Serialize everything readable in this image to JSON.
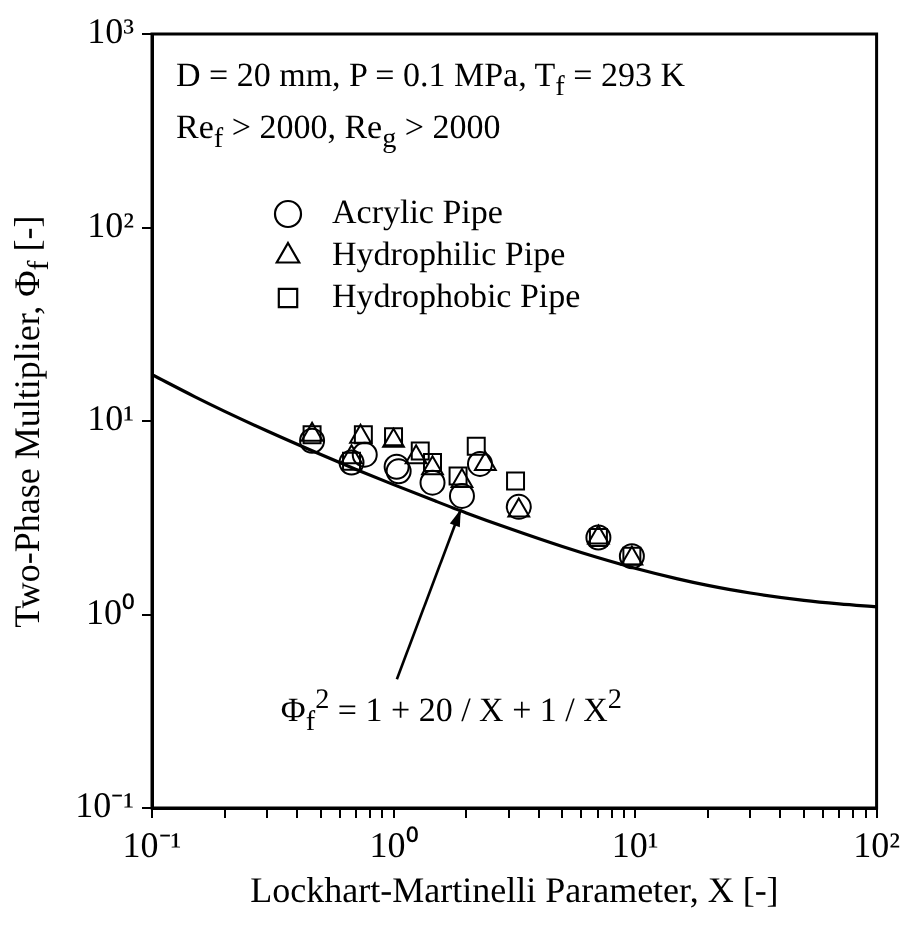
{
  "chart_data": {
    "type": "scatter",
    "xlabel": "Lockhart-Martinelli Parameter,  X  [-]",
    "ylabel": "Two-Phase Multiplier,  Φ$_{f}$  [-]",
    "annotations": [
      "D = 20 mm, P = 0.1 MPa, T$_{f}$ = 293 K",
      "Re$_{f}$ > 2000,  Re$_{g}$ > 2000",
      {
        "text": "Φ$_{f}$$^{2}$ = 1 + 20 / X + 1 / X$^{2}$",
        "x": 1.9,
        "y": 3.5
      }
    ],
    "log": "xy",
    "xlim": [
      0.1,
      100
    ],
    "ylim": [
      0.1,
      1000
    ],
    "xticks": [
      {
        "value": 0.1,
        "label": "10⁻¹"
      },
      {
        "value": 0.2,
        "label": null
      },
      {
        "value": 0.3,
        "label": null
      },
      {
        "value": 0.4,
        "label": null
      },
      {
        "value": 0.5,
        "label": null
      },
      {
        "value": 0.6,
        "label": null
      },
      {
        "value": 0.7,
        "label": null
      },
      {
        "value": 0.8,
        "label": null
      },
      {
        "value": 0.9,
        "label": null
      },
      {
        "value": 1,
        "label": "10⁰"
      },
      {
        "value": 2,
        "label": null
      },
      {
        "value": 3,
        "label": null
      },
      {
        "value": 4,
        "label": null
      },
      {
        "value": 5,
        "label": null
      },
      {
        "value": 6,
        "label": null
      },
      {
        "value": 7,
        "label": null
      },
      {
        "value": 8,
        "label": null
      },
      {
        "value": 9,
        "label": null
      },
      {
        "value": 10,
        "label": "10¹"
      },
      {
        "value": 20,
        "label": null
      },
      {
        "value": 30,
        "label": null
      },
      {
        "value": 40,
        "label": null
      },
      {
        "value": 50,
        "label": null
      },
      {
        "value": 60,
        "label": null
      },
      {
        "value": 70,
        "label": null
      },
      {
        "value": 80,
        "label": null
      },
      {
        "value": 90,
        "label": null
      },
      {
        "value": 100,
        "label": "10²"
      }
    ],
    "yticks": [
      {
        "value": 0.1,
        "label": "10⁻¹"
      },
      {
        "value": 1,
        "label": "10⁰"
      },
      {
        "value": 10,
        "label": "10¹"
      },
      {
        "value": 100,
        "label": "10²"
      },
      {
        "value": 1000,
        "label": "10³"
      }
    ],
    "grid": false,
    "legend": "top left",
    "series": [
      {
        "name": "Acrylic Pipe",
        "marker": "circle",
        "color": "#000000",
        "x": [
          0.46,
          0.67,
          0.76,
          1.03,
          1.05,
          1.45,
          1.92,
          2.28,
          3.3,
          7.05,
          9.7
        ],
        "values": [
          7.9,
          6.1,
          6.7,
          5.8,
          5.5,
          4.8,
          4.1,
          6.0,
          3.6,
          2.5,
          2.0
        ]
      },
      {
        "name": "Hydrophilic Pipe",
        "marker": "triangle",
        "color": "#000000",
        "x": [
          0.46,
          0.67,
          0.73,
          1.0,
          1.24,
          1.45,
          1.92,
          2.4,
          3.3,
          7.05,
          9.7
        ],
        "values": [
          8.5,
          6.5,
          8.3,
          7.9,
          6.5,
          5.7,
          4.9,
          6.0,
          3.45,
          2.5,
          1.95
        ]
      },
      {
        "name": "Hydrophobic Pipe",
        "marker": "square",
        "color": "#000000",
        "x": [
          0.46,
          0.67,
          0.75,
          1.0,
          1.29,
          1.45,
          1.85,
          2.2,
          3.2,
          7.05,
          9.7
        ],
        "values": [
          8.5,
          6.2,
          8.5,
          8.3,
          7.0,
          6.1,
          5.2,
          7.4,
          4.9,
          2.5,
          2.0
        ]
      },
      {
        "type": "line",
        "marker": "none",
        "line_style": "solid",
        "color": "#000000",
        "x": [
          0.1,
          0.15,
          0.2,
          0.3,
          0.5,
          0.7,
          1,
          1.5,
          2,
          3,
          5,
          7,
          10,
          15,
          20,
          30,
          50,
          70,
          100
        ],
        "values": [
          17.35,
          13.37,
          11.22,
          8.876,
          6.71,
          5.62,
          4.69,
          3.844,
          3.35,
          2.789,
          2.245,
          1.969,
          1.735,
          1.529,
          1.415,
          1.291,
          1.183,
          1.134,
          1.095
        ]
      }
    ]
  }
}
